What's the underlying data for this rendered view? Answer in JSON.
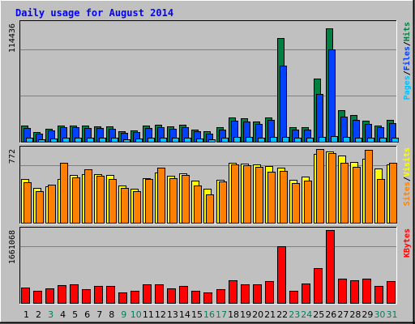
{
  "title": "Daily usage for August 2014",
  "colors": {
    "background": "#C0C0C0",
    "panel": "#C0C0C0",
    "title": "#0000FF",
    "hits": "#008040",
    "files": "#0040FF",
    "pages": "#00C0FF",
    "visits": "#FFFF00",
    "sites": "#FF8000",
    "kbytes": "#FF0000",
    "weekday_label": "#000000",
    "weekend_label": "#00805C"
  },
  "chart_data": [
    {
      "type": "bar",
      "panel": "top",
      "max_label": "114436",
      "ylim": [
        0,
        114436
      ],
      "legend": [
        {
          "text": "Pages",
          "color": "#00C0FF"
        },
        {
          "text": "/",
          "color": "#000000"
        },
        {
          "text": "Files",
          "color": "#0040FF"
        },
        {
          "text": "/",
          "color": "#000000"
        },
        {
          "text": "Hits",
          "color": "#008040"
        }
      ],
      "categories": [
        "1",
        "2",
        "3",
        "4",
        "5",
        "6",
        "7",
        "8",
        "9",
        "10",
        "11",
        "12",
        "13",
        "14",
        "15",
        "16",
        "17",
        "18",
        "19",
        "20",
        "21",
        "22",
        "23",
        "24",
        "25",
        "26",
        "27",
        "28",
        "29",
        "30",
        "31"
      ],
      "series": [
        {
          "name": "Hits",
          "color": "#008040",
          "values": [
            15300,
            9600,
            12200,
            15300,
            15700,
            15300,
            14900,
            14700,
            10200,
            10900,
            15300,
            16100,
            14600,
            16800,
            11800,
            10200,
            13800,
            23300,
            22500,
            19300,
            23200,
            100300,
            14100,
            14300,
            61100,
            110100,
            30600,
            25800,
            20400,
            16000,
            20800
          ]
        },
        {
          "name": "Files",
          "color": "#0040FF",
          "values": [
            13600,
            8200,
            10600,
            13800,
            14100,
            13400,
            13100,
            12700,
            8500,
            9100,
            13100,
            14300,
            12400,
            14500,
            10100,
            8200,
            12000,
            20700,
            19700,
            17300,
            21000,
            73300,
            11800,
            12000,
            46000,
            89000,
            24000,
            21000,
            17000,
            14100,
            18100
          ]
        },
        {
          "name": "Pages",
          "color": "#00C0FF",
          "values": [
            3800,
            2600,
            3200,
            4000,
            4000,
            3800,
            3700,
            3600,
            2700,
            2800,
            3800,
            4000,
            3600,
            4200,
            3000,
            2600,
            3600,
            4500,
            4400,
            4200,
            4400,
            5000,
            3600,
            3700,
            4800,
            5200,
            4500,
            4300,
            4100,
            3800,
            4200
          ]
        }
      ]
    },
    {
      "type": "bar",
      "panel": "middle",
      "max_label": "772",
      "ylim": [
        0,
        772
      ],
      "legend": [
        {
          "text": "Sites",
          "color": "#FF8000"
        },
        {
          "text": "/",
          "color": "#000000"
        },
        {
          "text": "Visits",
          "color": "#FFFF00"
        }
      ],
      "categories": [
        "1",
        "2",
        "3",
        "4",
        "5",
        "6",
        "7",
        "8",
        "9",
        "10",
        "11",
        "12",
        "13",
        "14",
        "15",
        "16",
        "17",
        "18",
        "19",
        "20",
        "21",
        "22",
        "23",
        "24",
        "25",
        "26",
        "27",
        "28",
        "29",
        "30",
        "31"
      ],
      "series": [
        {
          "name": "Visits",
          "color": "#FFFF00",
          "values": [
            454,
            362,
            378,
            461,
            498,
            513,
            509,
            504,
            387,
            359,
            467,
            525,
            495,
            521,
            442,
            355,
            448,
            630,
            617,
            607,
            593,
            577,
            446,
            480,
            720,
            750,
            706,
            638,
            668,
            570,
            610
          ]
        },
        {
          "name": "Sites",
          "color": "#FF8000",
          "values": [
            422,
            332,
            397,
            627,
            474,
            562,
            493,
            460,
            366,
            331,
            459,
            577,
            464,
            501,
            394,
            301,
            436,
            611,
            599,
            584,
            534,
            546,
            414,
            437,
            772,
            733,
            627,
            587,
            767,
            461,
            627
          ]
        }
      ]
    },
    {
      "type": "bar",
      "panel": "bottom",
      "max_label": "1661068",
      "ylim": [
        0,
        1661068
      ],
      "legend": [
        {
          "text": "KBytes",
          "color": "#FF0000"
        }
      ],
      "categories": [
        "1",
        "2",
        "3",
        "4",
        "5",
        "6",
        "7",
        "8",
        "9",
        "10",
        "11",
        "12",
        "13",
        "14",
        "15",
        "16",
        "17",
        "18",
        "19",
        "20",
        "21",
        "22",
        "23",
        "24",
        "25",
        "26",
        "27",
        "28",
        "29",
        "30",
        "31"
      ],
      "series": [
        {
          "name": "KBytes",
          "color": "#FF0000",
          "values": [
            355000,
            275000,
            335000,
            415000,
            425000,
            305000,
            395000,
            395000,
            245000,
            285000,
            425000,
            425000,
            335000,
            395000,
            285000,
            245000,
            305000,
            515000,
            425000,
            425000,
            505000,
            1295000,
            275000,
            435000,
            795000,
            1661068,
            555000,
            525000,
            545000,
            395000,
            495000
          ]
        }
      ]
    }
  ],
  "x_labels": [
    {
      "text": "1",
      "weekend": false
    },
    {
      "text": "2",
      "weekend": false
    },
    {
      "text": "3",
      "weekend": true
    },
    {
      "text": "4",
      "weekend": false
    },
    {
      "text": "5",
      "weekend": false
    },
    {
      "text": "6",
      "weekend": false
    },
    {
      "text": "7",
      "weekend": false
    },
    {
      "text": "8",
      "weekend": false
    },
    {
      "text": "9",
      "weekend": true
    },
    {
      "text": "10",
      "weekend": true
    },
    {
      "text": "11",
      "weekend": false
    },
    {
      "text": "12",
      "weekend": false
    },
    {
      "text": "13",
      "weekend": false
    },
    {
      "text": "14",
      "weekend": false
    },
    {
      "text": "15",
      "weekend": false
    },
    {
      "text": "16",
      "weekend": true
    },
    {
      "text": "17",
      "weekend": true
    },
    {
      "text": "18",
      "weekend": false
    },
    {
      "text": "19",
      "weekend": false
    },
    {
      "text": "20",
      "weekend": false
    },
    {
      "text": "21",
      "weekend": false
    },
    {
      "text": "22",
      "weekend": false
    },
    {
      "text": "23",
      "weekend": true
    },
    {
      "text": "24",
      "weekend": true
    },
    {
      "text": "25",
      "weekend": false
    },
    {
      "text": "26",
      "weekend": false
    },
    {
      "text": "27",
      "weekend": false
    },
    {
      "text": "28",
      "weekend": false
    },
    {
      "text": "29",
      "weekend": false
    },
    {
      "text": "30",
      "weekend": true
    },
    {
      "text": "31",
      "weekend": true
    }
  ]
}
